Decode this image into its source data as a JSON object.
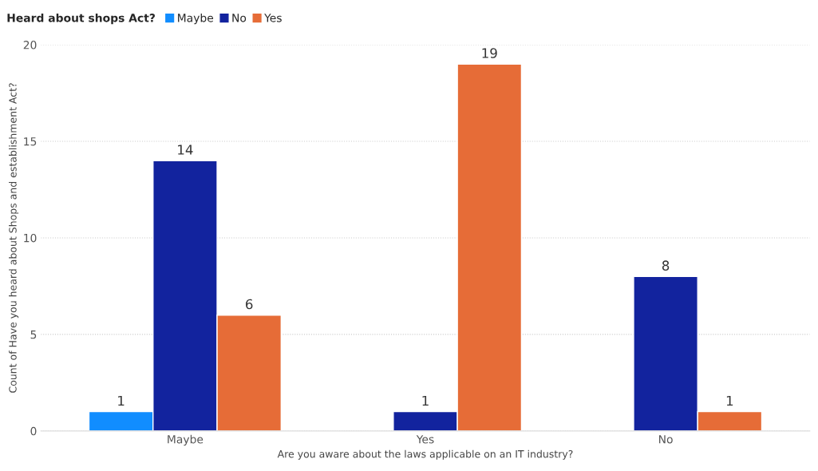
{
  "chart_data": {
    "type": "bar",
    "xlabel": "Are you aware about the laws applicable on an IT industry?",
    "ylabel": "Count of Have you heard about Shops and establishment Act?",
    "legend_title": "Heard about shops Act?",
    "categories": [
      "Maybe",
      "Yes",
      "No"
    ],
    "series": [
      {
        "name": "Maybe",
        "color": "#118dff",
        "values": [
          1,
          null,
          null
        ]
      },
      {
        "name": "No",
        "color": "#12239e",
        "values": [
          14,
          1,
          8
        ]
      },
      {
        "name": "Yes",
        "color": "#e66c37",
        "values": [
          6,
          19,
          1
        ]
      }
    ],
    "ylim": [
      0,
      20
    ],
    "yticks": [
      0,
      5,
      10,
      15,
      20
    ],
    "grid": "y",
    "legend": "top left",
    "data_labels": true
  }
}
